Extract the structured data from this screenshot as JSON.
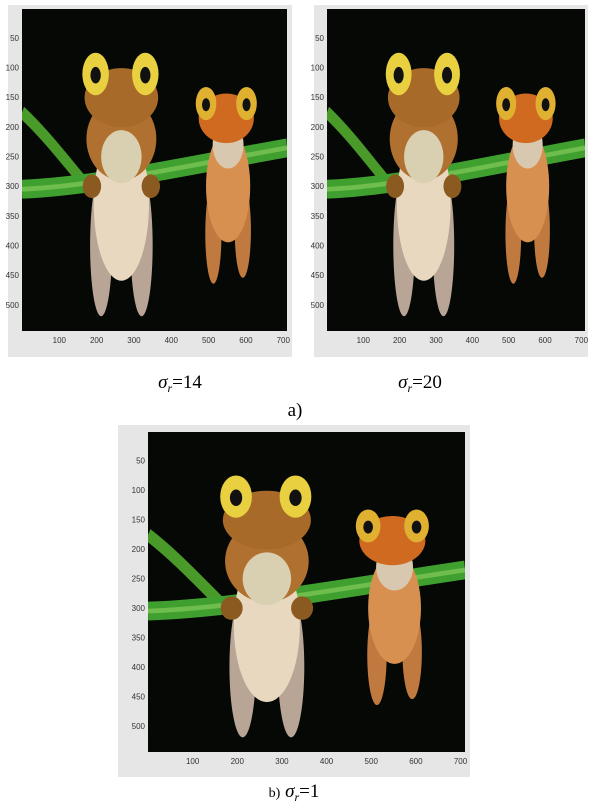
{
  "panels": [
    {
      "yticks": [
        50,
        100,
        150,
        200,
        250,
        300,
        350,
        400,
        450,
        500
      ],
      "xticks": [
        100,
        200,
        300,
        400,
        500,
        600,
        700
      ],
      "caption": {
        "symbol": "σ",
        "subscript": "r",
        "rest": "=14"
      }
    },
    {
      "yticks": [
        50,
        100,
        150,
        200,
        250,
        300,
        350,
        400,
        450,
        500
      ],
      "xticks": [
        100,
        200,
        300,
        400,
        500,
        600,
        700
      ],
      "caption": {
        "symbol": "σ",
        "subscript": "r",
        "rest": "=20"
      }
    },
    {
      "yticks": [
        50,
        100,
        150,
        200,
        250,
        300,
        350,
        400,
        450,
        500
      ],
      "xticks": [
        100,
        200,
        300,
        400,
        500,
        600,
        700
      ],
      "caption": {
        "prefix": "b)",
        "symbol": "σ",
        "subscript": "r",
        "rest": "=1"
      }
    }
  ],
  "group_label": "a)"
}
